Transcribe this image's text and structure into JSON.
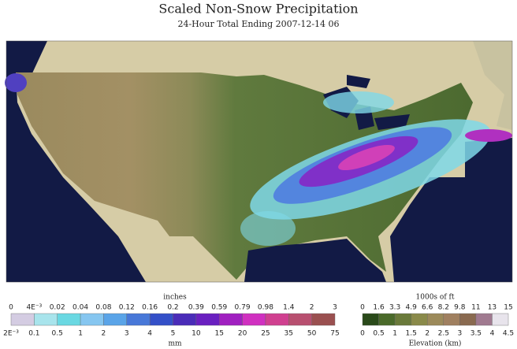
{
  "header": {
    "title": "Scaled Non-Snow Precipitation",
    "subtitle": "24-Hour Total Ending 2007-12-14 06"
  },
  "precip_legend": {
    "top_unit": "inches",
    "bottom_unit": "mm",
    "top_labels": [
      "0",
      "4E⁻³",
      "0.02",
      "0.04",
      "0.08",
      "0.12",
      "0.16",
      "0.2",
      "0.39",
      "0.59",
      "0.79",
      "0.98",
      "1.4",
      "2",
      "3"
    ],
    "bottom_labels": [
      "2E⁻³",
      "0.1",
      "0.5",
      "1",
      "2",
      "3",
      "4",
      "5",
      "10",
      "15",
      "20",
      "25",
      "35",
      "50",
      "75"
    ]
  },
  "elevation_legend": {
    "top_unit": "1000s of ft",
    "bottom_unit": "Elevation (km)",
    "top_labels": [
      "0",
      "1.6",
      "3.3",
      "4.9",
      "6.6",
      "8.2",
      "9.8",
      "11",
      "13",
      "15"
    ],
    "bottom_labels": [
      "0",
      "0.5",
      "1",
      "1.5",
      "2",
      "2.5",
      "3",
      "3.5",
      "4",
      "4.5"
    ]
  }
}
